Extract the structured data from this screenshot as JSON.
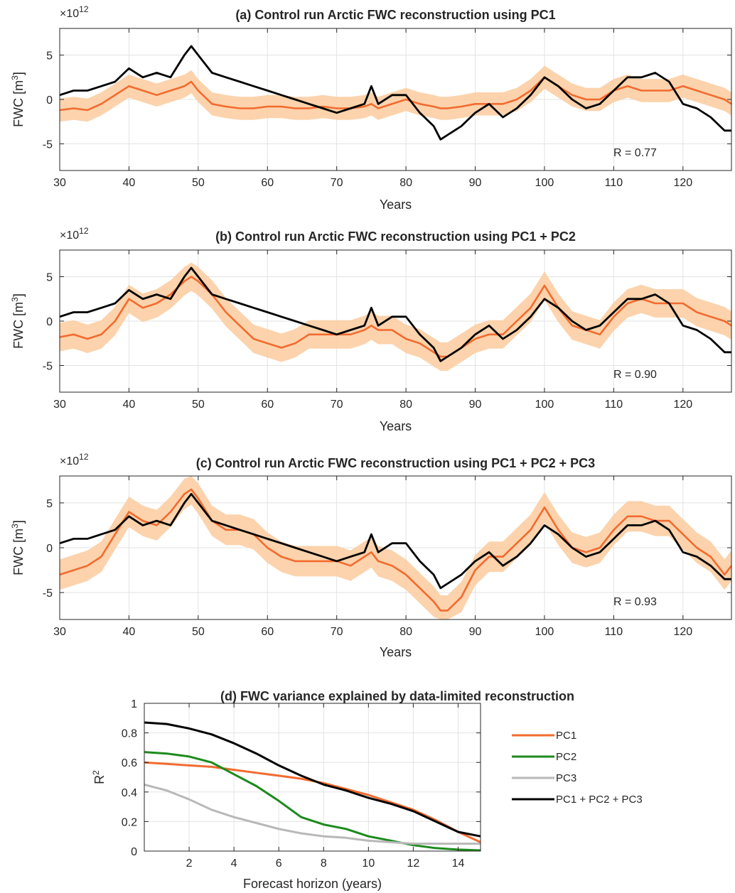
{
  "chart_data": [
    {
      "id": "a",
      "type": "line",
      "title": "(a)   Control run Arctic FWC reconstruction using PC1",
      "xlabel": "Years",
      "ylabel": "FWC [m3]",
      "yexp_base": "×10",
      "yexp_power": "12",
      "xlim": [
        30,
        127
      ],
      "ylim": [
        -8,
        8
      ],
      "xticks": [
        30,
        40,
        50,
        60,
        70,
        80,
        90,
        100,
        110,
        120
      ],
      "yticks": [
        -5,
        0,
        5
      ],
      "grid": true,
      "annotation": "R = 0.77",
      "band_half_width": 1.3,
      "series": [
        {
          "role": "truth",
          "color": "#000000",
          "x": [
            30,
            32,
            34,
            36,
            38,
            40,
            42,
            44,
            46,
            48,
            49,
            50,
            52,
            54,
            56,
            58,
            60,
            62,
            64,
            66,
            68,
            70,
            72,
            74,
            75,
            76,
            78,
            80,
            82,
            84,
            85,
            86,
            88,
            90,
            92,
            94,
            96,
            98,
            100,
            102,
            104,
            106,
            108,
            110,
            112,
            114,
            116,
            118,
            120,
            122,
            124,
            126,
            127
          ],
          "y": [
            0.5,
            1,
            1,
            1.5,
            2,
            3.5,
            2.5,
            3,
            2.5,
            5,
            6,
            5,
            3,
            2.5,
            2,
            1.5,
            1,
            0.5,
            0,
            -0.5,
            -1,
            -1.5,
            -1,
            -0.5,
            1.5,
            -0.5,
            0.5,
            0.5,
            -1.5,
            -3,
            -4.5,
            -4,
            -3,
            -1.5,
            -0.5,
            -2,
            -1,
            0.5,
            2.5,
            1.5,
            0,
            -1,
            -0.5,
            1,
            2.5,
            2.5,
            3,
            2,
            -0.5,
            -1,
            -2,
            -3.5,
            -3.5
          ]
        },
        {
          "role": "reconstruction",
          "color": "#F26B2F",
          "x": [
            30,
            32,
            34,
            36,
            38,
            40,
            42,
            44,
            46,
            48,
            49,
            50,
            52,
            54,
            56,
            58,
            60,
            62,
            64,
            66,
            68,
            70,
            72,
            74,
            75,
            76,
            78,
            80,
            82,
            84,
            85,
            86,
            88,
            90,
            92,
            94,
            96,
            98,
            100,
            102,
            104,
            106,
            108,
            110,
            112,
            114,
            116,
            118,
            120,
            122,
            124,
            126,
            127
          ],
          "y": [
            -1.2,
            -1,
            -1.2,
            -0.5,
            0.5,
            1.5,
            1,
            0.5,
            1,
            1.5,
            2,
            1,
            -0.5,
            -0.8,
            -1,
            -1,
            -0.8,
            -0.8,
            -1,
            -1,
            -0.8,
            -1,
            -1,
            -0.8,
            -0.5,
            -1,
            -0.5,
            0,
            -0.5,
            -0.8,
            -1,
            -1,
            -0.8,
            -0.5,
            -0.5,
            -0.5,
            0,
            1,
            2.5,
            1.5,
            0.5,
            0,
            0,
            1,
            1.5,
            1,
            1,
            1,
            1.5,
            1,
            0.5,
            0,
            -0.5
          ]
        }
      ]
    },
    {
      "id": "b",
      "type": "line",
      "title": "(b)   Control run Arctic FWC reconstruction using PC1 + PC2",
      "xlabel": "Years",
      "ylabel": "FWC [m3]",
      "yexp_base": "×10",
      "yexp_power": "12",
      "xlim": [
        30,
        127
      ],
      "ylim": [
        -8,
        8
      ],
      "xticks": [
        30,
        40,
        50,
        60,
        70,
        80,
        90,
        100,
        110,
        120
      ],
      "yticks": [
        -5,
        0,
        5
      ],
      "grid": true,
      "annotation": "R = 0.90",
      "band_half_width": 1.6,
      "series": [
        {
          "role": "truth",
          "color": "#000000",
          "x": [
            30,
            32,
            34,
            36,
            38,
            40,
            42,
            44,
            46,
            48,
            49,
            50,
            52,
            54,
            56,
            58,
            60,
            62,
            64,
            66,
            68,
            70,
            72,
            74,
            75,
            76,
            78,
            80,
            82,
            84,
            85,
            86,
            88,
            90,
            92,
            94,
            96,
            98,
            100,
            102,
            104,
            106,
            108,
            110,
            112,
            114,
            116,
            118,
            120,
            122,
            124,
            126,
            127
          ],
          "y": [
            0.5,
            1,
            1,
            1.5,
            2,
            3.5,
            2.5,
            3,
            2.5,
            5,
            6,
            5,
            3,
            2.5,
            2,
            1.5,
            1,
            0.5,
            0,
            -0.5,
            -1,
            -1.5,
            -1,
            -0.5,
            1.5,
            -0.5,
            0.5,
            0.5,
            -1.5,
            -3,
            -4.5,
            -4,
            -3,
            -1.5,
            -0.5,
            -2,
            -1,
            0.5,
            2.5,
            1.5,
            0,
            -1,
            -0.5,
            1,
            2.5,
            2.5,
            3,
            2,
            -0.5,
            -1,
            -2,
            -3.5,
            -3.5
          ]
        },
        {
          "role": "reconstruction",
          "color": "#F26B2F",
          "x": [
            30,
            32,
            34,
            36,
            38,
            40,
            42,
            44,
            46,
            48,
            49,
            50,
            52,
            54,
            56,
            58,
            60,
            62,
            64,
            66,
            68,
            70,
            72,
            74,
            75,
            76,
            78,
            80,
            82,
            84,
            85,
            86,
            88,
            90,
            92,
            94,
            96,
            98,
            100,
            102,
            104,
            106,
            108,
            110,
            112,
            114,
            116,
            118,
            120,
            122,
            124,
            126,
            127
          ],
          "y": [
            -1.8,
            -1.5,
            -2,
            -1.5,
            0,
            2.5,
            1.5,
            2,
            3,
            4.5,
            5,
            4.5,
            3,
            1,
            -0.5,
            -2,
            -2.5,
            -3,
            -2.5,
            -1.5,
            -1.5,
            -1.5,
            -1.5,
            -1,
            -0.5,
            -1,
            -1,
            -2,
            -2.5,
            -3.5,
            -4,
            -4,
            -3,
            -2,
            -1.5,
            -1.5,
            0,
            1.5,
            4,
            1.5,
            -0.5,
            -1,
            -1.5,
            0.5,
            2,
            2.5,
            2,
            2,
            2,
            1,
            0.5,
            0,
            -0.5
          ]
        }
      ]
    },
    {
      "id": "c",
      "type": "line",
      "title": "(c)   Control run Arctic FWC reconstruction using PC1 + PC2 + PC3",
      "xlabel": "Years",
      "ylabel": "FWC [m3]",
      "yexp_base": "×10",
      "yexp_power": "12",
      "xlim": [
        30,
        127
      ],
      "ylim": [
        -8,
        8
      ],
      "xticks": [
        30,
        40,
        50,
        60,
        70,
        80,
        90,
        100,
        110,
        120
      ],
      "yticks": [
        -5,
        0,
        5
      ],
      "grid": true,
      "annotation": "R = 0.93",
      "band_half_width": 1.7,
      "series": [
        {
          "role": "truth",
          "color": "#000000",
          "x": [
            30,
            32,
            34,
            36,
            38,
            40,
            42,
            44,
            46,
            48,
            49,
            50,
            52,
            54,
            56,
            58,
            60,
            62,
            64,
            66,
            68,
            70,
            72,
            74,
            75,
            76,
            78,
            80,
            82,
            84,
            85,
            86,
            88,
            90,
            92,
            94,
            96,
            98,
            100,
            102,
            104,
            106,
            108,
            110,
            112,
            114,
            116,
            118,
            120,
            122,
            124,
            126,
            127
          ],
          "y": [
            0.5,
            1,
            1,
            1.5,
            2,
            3.5,
            2.5,
            3,
            2.5,
            5,
            6,
            5,
            3,
            2.5,
            2,
            1.5,
            1,
            0.5,
            0,
            -0.5,
            -1,
            -1.5,
            -1,
            -0.5,
            1.5,
            -0.5,
            0.5,
            0.5,
            -1.5,
            -3,
            -4.5,
            -4,
            -3,
            -1.5,
            -0.5,
            -2,
            -1,
            0.5,
            2.5,
            1.5,
            0,
            -1,
            -0.5,
            1,
            2.5,
            2.5,
            3,
            2,
            -0.5,
            -1,
            -2,
            -3.5,
            -3.5
          ]
        },
        {
          "role": "reconstruction",
          "color": "#F26B2F",
          "x": [
            30,
            32,
            34,
            36,
            38,
            40,
            42,
            44,
            46,
            48,
            49,
            50,
            52,
            54,
            56,
            58,
            60,
            62,
            64,
            66,
            68,
            70,
            72,
            74,
            75,
            76,
            78,
            80,
            82,
            84,
            85,
            86,
            88,
            90,
            92,
            94,
            96,
            98,
            100,
            102,
            104,
            106,
            108,
            110,
            112,
            114,
            116,
            118,
            120,
            122,
            124,
            126,
            127
          ],
          "y": [
            -3,
            -2.5,
            -2,
            -1,
            1.5,
            4,
            3,
            2.5,
            4,
            6,
            6.5,
            5.5,
            3,
            2,
            2,
            1.5,
            0,
            -1,
            -1.5,
            -1.5,
            -1.5,
            -1.5,
            -2,
            -1,
            -0.5,
            -1.5,
            -2,
            -3,
            -4.5,
            -6,
            -7,
            -7,
            -5.5,
            -2.5,
            -1,
            -1,
            0.5,
            2,
            4.5,
            2,
            0,
            -0.5,
            0,
            2,
            3.5,
            3.5,
            3,
            3,
            1.5,
            0,
            -1,
            -3,
            -2
          ]
        }
      ]
    },
    {
      "id": "d",
      "type": "line",
      "title": "(d)   FWC variance explained by data-limited reconstruction",
      "xlabel": "Forecast horizon (years)",
      "ylabel": "R2",
      "xlim": [
        0,
        15
      ],
      "ylim": [
        0,
        1
      ],
      "xticks": [
        2,
        4,
        6,
        8,
        10,
        12,
        14
      ],
      "yticks": [
        0,
        0.2,
        0.4,
        0.6,
        0.8,
        1
      ],
      "ytick_labels": [
        "0",
        "0.2",
        "0.4",
        "0.6",
        "0.8",
        "1"
      ],
      "grid": true,
      "legend_position": "right",
      "series": [
        {
          "name": "PC1",
          "color": "#F26B2F",
          "x": [
            0,
            1,
            2,
            3,
            4,
            5,
            6,
            7,
            8,
            9,
            10,
            11,
            12,
            13,
            14,
            15
          ],
          "y": [
            0.6,
            0.59,
            0.58,
            0.57,
            0.55,
            0.53,
            0.51,
            0.49,
            0.46,
            0.42,
            0.38,
            0.33,
            0.28,
            0.21,
            0.13,
            0.06
          ]
        },
        {
          "name": "PC2",
          "color": "#1C8A1C",
          "x": [
            0,
            1,
            2,
            3,
            4,
            5,
            6,
            7,
            8,
            9,
            10,
            11,
            12,
            13,
            14,
            15
          ],
          "y": [
            0.67,
            0.66,
            0.64,
            0.6,
            0.52,
            0.44,
            0.34,
            0.23,
            0.18,
            0.15,
            0.1,
            0.07,
            0.04,
            0.02,
            0.01,
            0.005
          ]
        },
        {
          "name": "PC3",
          "color": "#B8B8B8",
          "x": [
            0,
            1,
            2,
            3,
            4,
            5,
            6,
            7,
            8,
            9,
            10,
            11,
            12,
            13,
            14,
            15
          ],
          "y": [
            0.45,
            0.41,
            0.35,
            0.28,
            0.23,
            0.19,
            0.15,
            0.12,
            0.1,
            0.09,
            0.07,
            0.06,
            0.05,
            0.05,
            0.05,
            0.05
          ]
        },
        {
          "name": "PC1 + PC2 + PC3",
          "color": "#000000",
          "x": [
            0,
            1,
            2,
            3,
            4,
            5,
            6,
            7,
            8,
            9,
            10,
            11,
            12,
            13,
            14,
            15
          ],
          "y": [
            0.87,
            0.86,
            0.83,
            0.79,
            0.73,
            0.66,
            0.58,
            0.51,
            0.45,
            0.41,
            0.36,
            0.32,
            0.27,
            0.2,
            0.13,
            0.1
          ]
        }
      ]
    }
  ]
}
